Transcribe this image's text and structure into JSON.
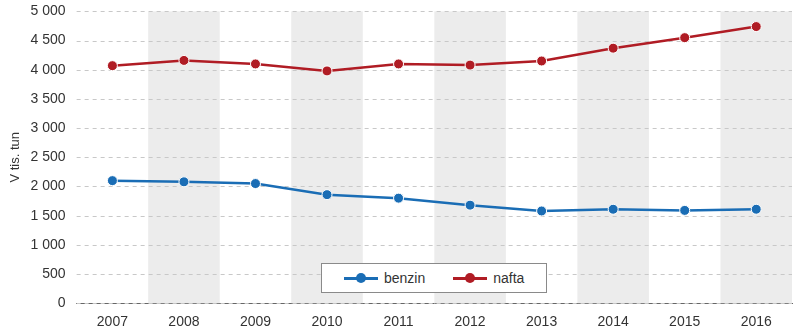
{
  "chart_data": {
    "type": "line",
    "y_label": "V tis. tun",
    "categories": [
      "2007",
      "2008",
      "2009",
      "2010",
      "2011",
      "2012",
      "2013",
      "2014",
      "2015",
      "2016"
    ],
    "series": [
      {
        "name": "benzin",
        "color": "#1a6db5",
        "marker": "circle",
        "values": [
          2100,
          2080,
          2050,
          1860,
          1800,
          1680,
          1580,
          1610,
          1590,
          1610
        ]
      },
      {
        "name": "nafta",
        "color": "#b01c24",
        "marker": "circle",
        "values": [
          4070,
          4160,
          4100,
          3980,
          4100,
          4080,
          4150,
          4370,
          4550,
          4740
        ]
      }
    ],
    "ylim": [
      0,
      5000
    ],
    "yticks": [
      0,
      {
        "value": 500,
        "label": "500"
      },
      {
        "value": 1000,
        "label": "1 000"
      },
      {
        "value": 1500,
        "label": "1 500"
      },
      {
        "value": 2000,
        "label": "2 000"
      },
      {
        "value": 2500,
        "label": "2 500"
      },
      {
        "value": 3000,
        "label": "3 000"
      },
      {
        "value": 3500,
        "label": "3 500"
      },
      {
        "value": 4000,
        "label": "4 000"
      },
      {
        "value": 4500,
        "label": "4 500"
      },
      {
        "value": 5000,
        "label": "5 000"
      }
    ],
    "grid": true,
    "legend": "bottom"
  }
}
